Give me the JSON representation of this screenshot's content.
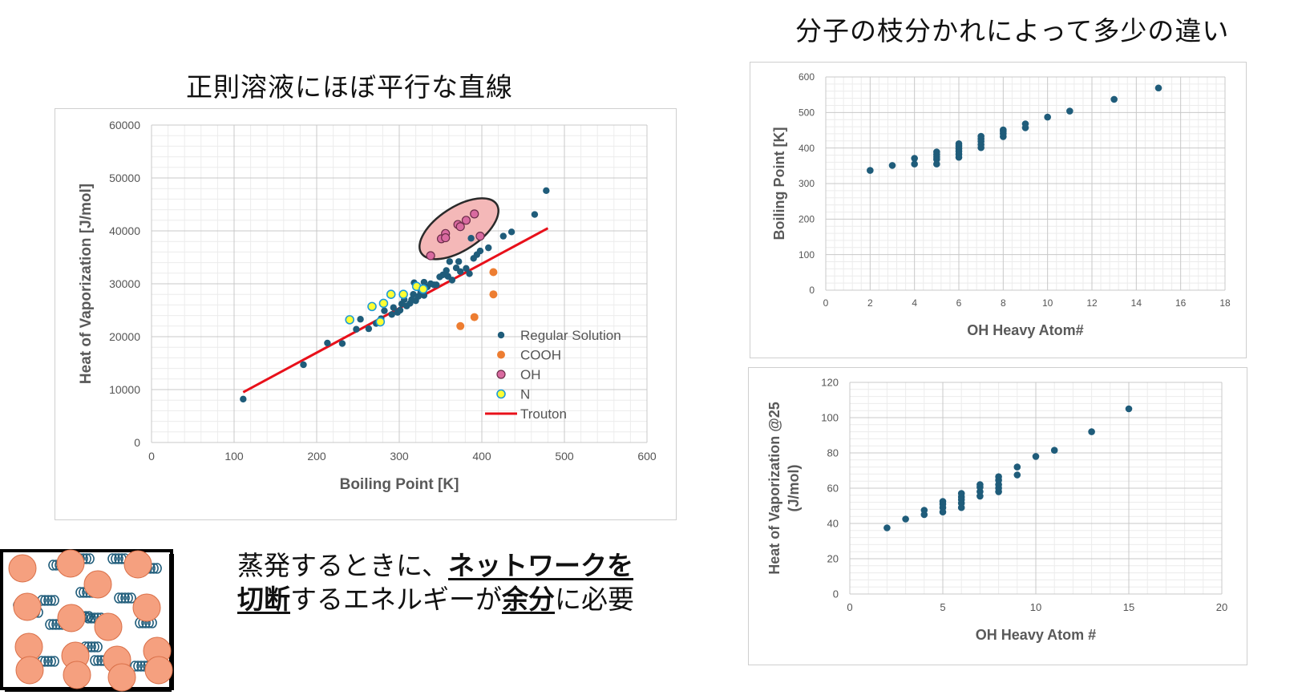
{
  "titles": {
    "left_title": "正則溶液にほぼ平行な直線",
    "right_title": "分子の枝分かれによって多少の違い"
  },
  "annotation": {
    "line1_pre": "蒸発するときに、",
    "line1_bold": "ネットワークを",
    "line2_bold1": "切断",
    "line2_mid": "するエネルギーが",
    "line2_bold2": "余分",
    "line2_post": "に必要"
  },
  "colors": {
    "regular": "#1f5c7a",
    "cooh": "#ed7d31",
    "oh": "#d96aa0",
    "n": "#ffff33",
    "n_edge": "#1f9bd6",
    "trouton": "#e8101a",
    "ellipse_fill": "#f4b8b8",
    "sphere": "#f5a07f",
    "spring": "#1f5c7a"
  },
  "chart_data": [
    {
      "type": "scatter",
      "xlabel": "Boiling Point [K]",
      "ylabel": "Heat of Vaporization [J/mol]",
      "xlim": [
        0,
        600
      ],
      "ylim": [
        0,
        60000
      ],
      "xticks": [
        0,
        100,
        200,
        300,
        400,
        500,
        600
      ],
      "yticks": [
        0,
        10000,
        20000,
        30000,
        40000,
        50000,
        60000
      ],
      "grid": true,
      "legend_position": "right",
      "series": [
        {
          "name": "Regular Solution",
          "marker": "dot",
          "points": [
            [
              111,
              8200
            ],
            [
              184,
              14700
            ],
            [
              213,
              18800
            ],
            [
              231,
              18700
            ],
            [
              248,
              21400
            ],
            [
              253,
              23300
            ],
            [
              263,
              21500
            ],
            [
              272,
              22500
            ],
            [
              278,
              23400
            ],
            [
              282,
              24900
            ],
            [
              291,
              24200
            ],
            [
              293,
              25500
            ],
            [
              298,
              24600
            ],
            [
              301,
              25000
            ],
            [
              303,
              26200
            ],
            [
              306,
              27000
            ],
            [
              309,
              25800
            ],
            [
              313,
              26300
            ],
            [
              315,
              27000
            ],
            [
              317,
              28000
            ],
            [
              320,
              26800
            ],
            [
              323,
              27600
            ],
            [
              326,
              28400
            ],
            [
              330,
              27800
            ],
            [
              334,
              29400
            ],
            [
              338,
              30000
            ],
            [
              342,
              29800
            ],
            [
              349,
              31300
            ],
            [
              353,
              31700
            ],
            [
              357,
              32500
            ],
            [
              359,
              31400
            ],
            [
              364,
              30700
            ],
            [
              369,
              33000
            ],
            [
              374,
              32300
            ],
            [
              381,
              32900
            ],
            [
              385,
              31900
            ],
            [
              390,
              34800
            ],
            [
              394,
              35500
            ],
            [
              398,
              36200
            ],
            [
              408,
              36800
            ],
            [
              318,
              30200
            ],
            [
              330,
              30300
            ],
            [
              345,
              29800
            ],
            [
              361,
              34200
            ],
            [
              372,
              34200
            ],
            [
              387,
              38600
            ],
            [
              398,
              38800
            ],
            [
              426,
              39000
            ],
            [
              436,
              39800
            ],
            [
              464,
              43100
            ],
            [
              478,
              47600
            ]
          ]
        },
        {
          "name": "COOH",
          "marker": "dot",
          "points": [
            [
              374,
              22000
            ],
            [
              391,
              23700
            ],
            [
              414,
              28000
            ],
            [
              414,
              32200
            ]
          ]
        },
        {
          "name": "OH",
          "marker": "dot",
          "points": [
            [
              338,
              35300
            ],
            [
              351,
              38500
            ],
            [
              356,
              39500
            ],
            [
              356,
              38700
            ],
            [
              371,
              41200
            ],
            [
              374,
              40800
            ],
            [
              381,
              42000
            ],
            [
              391,
              43200
            ],
            [
              398,
              39000
            ]
          ]
        },
        {
          "name": "N",
          "marker": "dot",
          "points": [
            [
              240,
              23200
            ],
            [
              267,
              25700
            ],
            [
              277,
              22800
            ],
            [
              281,
              26300
            ],
            [
              290,
              28000
            ],
            [
              305,
              28000
            ],
            [
              321,
              29500
            ],
            [
              329,
              29000
            ]
          ]
        },
        {
          "name": "Trouton",
          "marker": "line",
          "points": [
            [
              111,
              9500
            ],
            [
              480,
              40500
            ]
          ]
        }
      ]
    },
    {
      "type": "scatter",
      "xlabel": "OH  Heavy Atom#",
      "ylabel": "Boiling Point [K]",
      "xlim": [
        0,
        18
      ],
      "ylim": [
        0,
        600
      ],
      "xticks": [
        0,
        2,
        4,
        6,
        8,
        10,
        12,
        14,
        16,
        18
      ],
      "yticks": [
        0,
        100,
        200,
        300,
        400,
        500,
        600
      ],
      "grid": true,
      "series": [
        {
          "name": "",
          "points": [
            [
              2,
              337
            ],
            [
              3,
              351
            ],
            [
              4,
              355
            ],
            [
              4,
              371
            ],
            [
              5,
              355
            ],
            [
              5,
              368
            ],
            [
              5,
              375
            ],
            [
              5,
              382
            ],
            [
              5,
              389
            ],
            [
              6,
              374
            ],
            [
              6,
              383
            ],
            [
              6,
              391
            ],
            [
              6,
              398
            ],
            [
              6,
              405
            ],
            [
              6,
              412
            ],
            [
              7,
              401
            ],
            [
              7,
              410
            ],
            [
              7,
              419
            ],
            [
              7,
              426
            ],
            [
              7,
              433
            ],
            [
              8,
              432
            ],
            [
              8,
              440
            ],
            [
              8,
              447
            ],
            [
              8,
              451
            ],
            [
              9,
              457
            ],
            [
              9,
              468
            ],
            [
              10,
              487
            ],
            [
              11,
              504
            ],
            [
              13,
              537
            ],
            [
              15,
              569
            ]
          ]
        }
      ]
    },
    {
      "type": "scatter",
      "xlabel": "OH Heavy Atom #",
      "ylabel": "Heat of Vaporization @25 (J/mol)",
      "xlim": [
        0,
        20
      ],
      "ylim": [
        0,
        120
      ],
      "xticks": [
        0,
        5,
        10,
        15,
        20
      ],
      "yticks": [
        0,
        20,
        40,
        60,
        80,
        100,
        120
      ],
      "grid": true,
      "series": [
        {
          "name": "",
          "points": [
            [
              2,
              37.5
            ],
            [
              3,
              42.5
            ],
            [
              4,
              45
            ],
            [
              4,
              47.5
            ],
            [
              5,
              46.5
            ],
            [
              5,
              49
            ],
            [
              5,
              51
            ],
            [
              5,
              52.5
            ],
            [
              6,
              49
            ],
            [
              6,
              51.5
            ],
            [
              6,
              53.5
            ],
            [
              6,
              55
            ],
            [
              6,
              57
            ],
            [
              7,
              55.5
            ],
            [
              7,
              58
            ],
            [
              7,
              60.5
            ],
            [
              7,
              62
            ],
            [
              8,
              58
            ],
            [
              8,
              60
            ],
            [
              8,
              62
            ],
            [
              8,
              64.5
            ],
            [
              8,
              66.5
            ],
            [
              9,
              67.5
            ],
            [
              9,
              72
            ],
            [
              10,
              78
            ],
            [
              11,
              81.5
            ],
            [
              13,
              92
            ],
            [
              15,
              105
            ]
          ]
        }
      ]
    }
  ]
}
